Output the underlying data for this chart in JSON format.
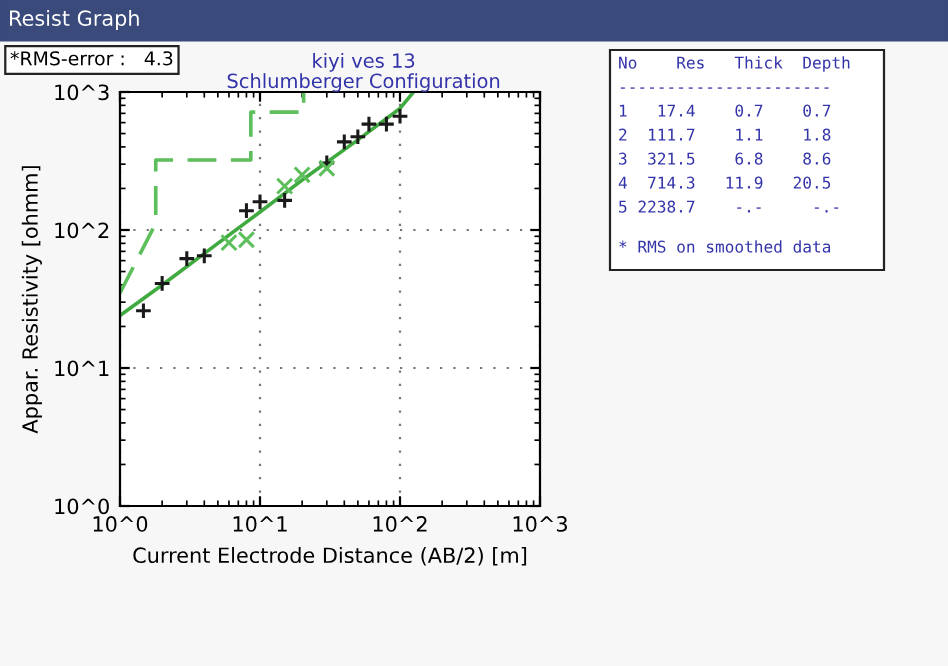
{
  "chart_data": {
    "type": "line",
    "title": "kiyi ves 13\nSchlumberger Configuration",
    "xlabel": "Current Electrode Distance (AB/2) [m]",
    "ylabel": "Appar. Resistivity [ohmm]",
    "log": "xy",
    "grid": true,
    "xlim": [
      1,
      1000
    ],
    "ylim": [
      1,
      1000
    ],
    "xticks": [
      {
        "value": 1,
        "label": "10^0"
      },
      {
        "value": 10,
        "label": "10^1"
      },
      {
        "value": 100,
        "label": "10^2"
      },
      {
        "value": 1000,
        "label": "10^3"
      }
    ],
    "yticks": [
      {
        "value": 1,
        "label": "10^0"
      },
      {
        "value": 10,
        "label": "10^1"
      },
      {
        "value": 100,
        "label": "10^2"
      },
      {
        "value": 1000,
        "label": "10^3"
      }
    ],
    "series": [
      {
        "type": "scatter",
        "marker": "plus",
        "color": "#1a1a1a",
        "x": [
          1.47,
          2.0,
          3.0,
          4.0,
          8.0,
          10,
          15,
          30,
          40,
          50,
          60,
          80,
          100
        ],
        "values": [
          26,
          41,
          62,
          65,
          138,
          160,
          164,
          306,
          435,
          474,
          585,
          585,
          667
        ]
      },
      {
        "type": "scatter",
        "marker": "cross",
        "color": "#5cbf5c",
        "x": [
          6,
          8.0,
          15,
          20,
          30
        ],
        "values": [
          81,
          85,
          208,
          251,
          280
        ]
      },
      {
        "line_style": "solid",
        "color": "#3faa3f",
        "x": [
          1,
          2,
          5,
          10,
          20,
          50,
          100,
          125
        ],
        "values": [
          24,
          40,
          80,
          135,
          230,
          450,
          760,
          1000
        ]
      },
      {
        "line_style": "dashed",
        "color": "#5cbf5c",
        "x": [
          1,
          1.8,
          1.8,
          8.6,
          8.6,
          20.5,
          20.5
        ],
        "values": [
          35,
          111.7,
          321.5,
          321.5,
          714.3,
          714.3,
          1000
        ]
      }
    ],
    "annotations": [
      "*RMS-error :   4.3",
      "Resist Graph",
      "No    Res   Thick  Depth",
      "----------------------",
      "1   17.4    0.7    0.7",
      "2  111.7    1.1    1.8",
      "3  321.5    6.8    8.6",
      "4  714.3   11.9   20.5",
      "5 2238.7    -.-     -.-",
      "* RMS on smoothed data"
    ]
  }
}
